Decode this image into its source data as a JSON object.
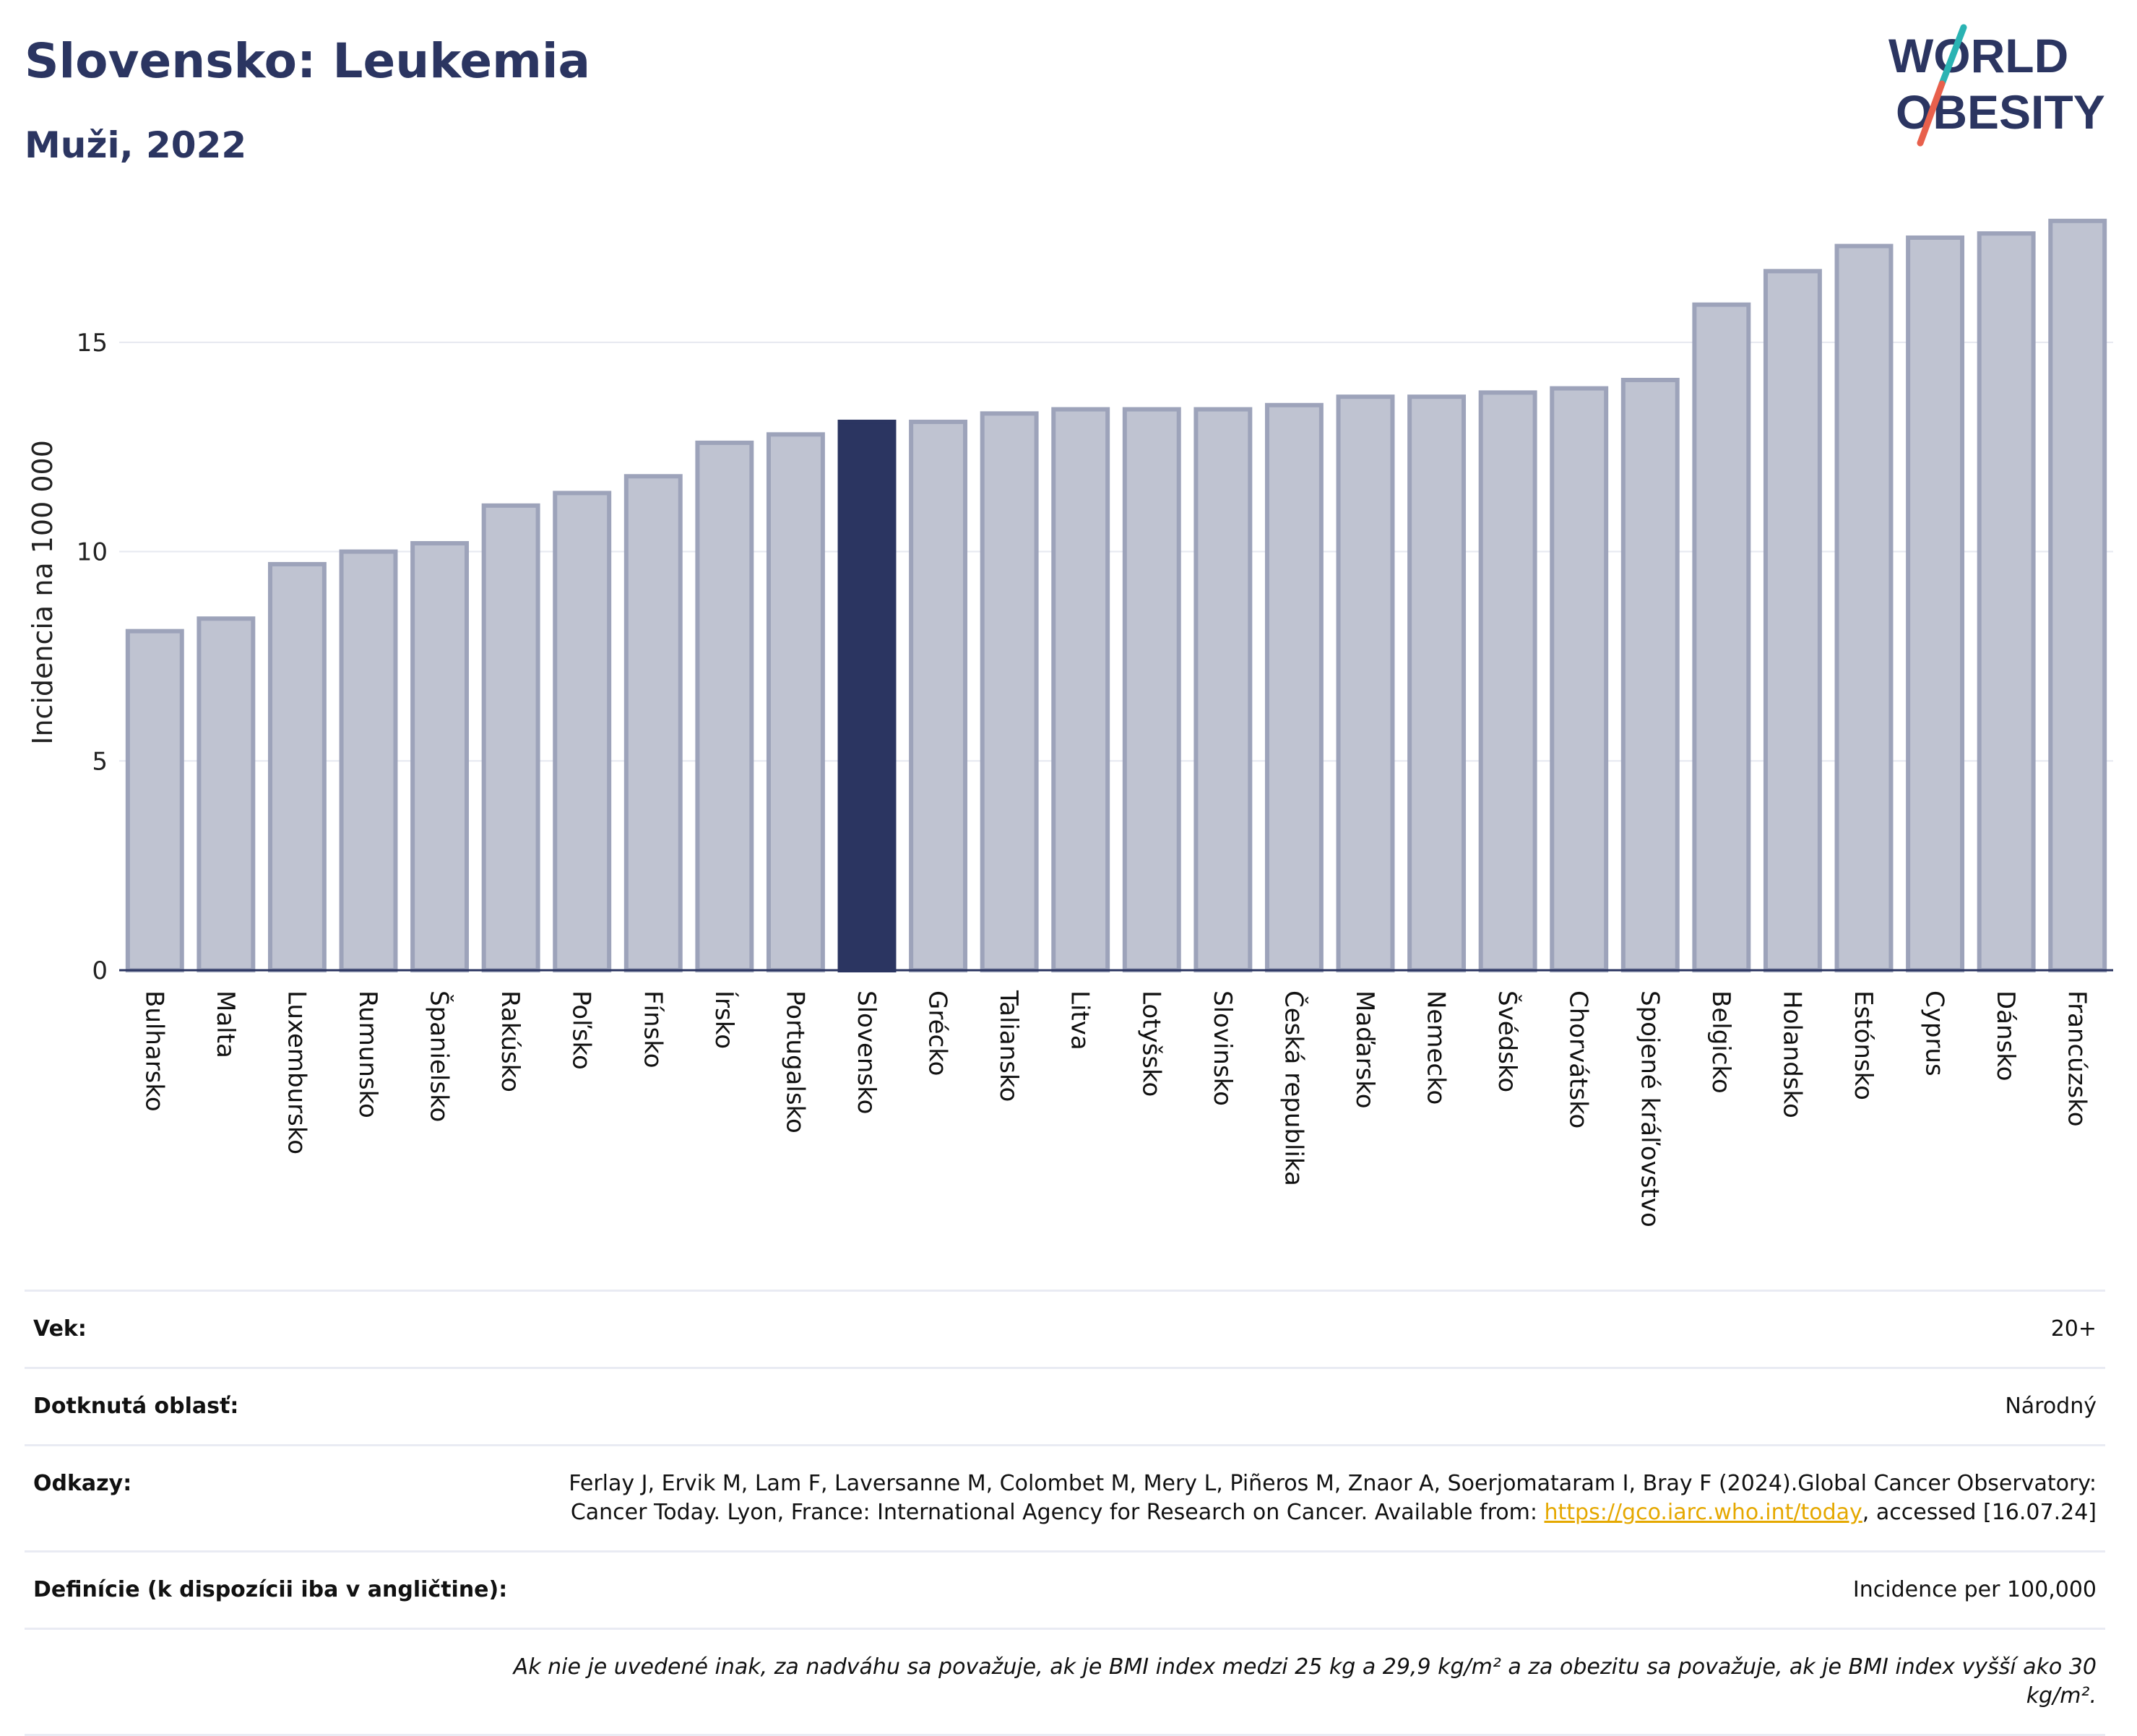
{
  "header": {
    "title": "Slovensko: Leukemia",
    "subtitle": "Muži, 2022"
  },
  "logo": {
    "line1": "WORLD",
    "line2": "OBESITY",
    "color_text": "#2b3561",
    "color_slash_top": "#2ab3b3",
    "color_slash_bottom": "#e8604c"
  },
  "chart_data": {
    "type": "bar",
    "ylabel": "Incidencia na 100 000",
    "ylim": [
      0,
      18
    ],
    "yticks": [
      0,
      5,
      10,
      15
    ],
    "grid": true,
    "highlight": "Slovensko",
    "colors": {
      "bar": "#bfc3d1",
      "bar_stroke": "#9da3ba",
      "highlight": "#2b3561",
      "grid": "#e6e8f0",
      "axis": "#2b3561"
    },
    "categories": [
      "Bulharsko",
      "Malta",
      "Luxembursko",
      "Rumunsko",
      "Španielsko",
      "Rakúsko",
      "Poľsko",
      "Fínsko",
      "Írsko",
      "Portugalsko",
      "Slovensko",
      "Grécko",
      "Taliansko",
      "Litva",
      "Lotyšsko",
      "Slovinsko",
      "Česká republika",
      "Maďarsko",
      "Nemecko",
      "Švédsko",
      "Chorvátsko",
      "Spojené kráľovstvo",
      "Belgicko",
      "Holandsko",
      "Estónsko",
      "Cyprus",
      "Dánsko",
      "Francúzsko"
    ],
    "values": [
      8.1,
      8.4,
      9.7,
      10.0,
      10.2,
      11.1,
      11.4,
      11.8,
      12.6,
      12.8,
      13.1,
      13.1,
      13.3,
      13.4,
      13.4,
      13.4,
      13.5,
      13.7,
      13.7,
      13.8,
      13.9,
      14.1,
      15.9,
      16.7,
      17.3,
      17.5,
      17.6,
      17.9
    ]
  },
  "meta": {
    "age_label": "Vek:",
    "age_value": "20+",
    "area_label": "Dotknutá oblasť:",
    "area_value": "Národný",
    "refs_label": "Odkazy:",
    "refs_text_1": "Ferlay J, Ervik M, Lam F, Laversanne M, Colombet M, Mery L, Piñeros M, Znaor A, Soerjomataram I, Bray F (2024).Global Cancer Observatory: Cancer Today. Lyon, France: International Agency for Research on Cancer. Available from: ",
    "refs_link": "https://gco.iarc.who.int/today",
    "refs_text_2": ", accessed [16.07.24]",
    "defs_label": "Definície (k dispozícii iba v angličtine):",
    "defs_value": "Incidence per 100,000",
    "note": "Ak nie je uvedené inak, za nadváhu sa považuje, ak je BMI index medzi 25 kg a 29,9 kg/m² a za obezitu sa považuje, ak je BMI index vyšší ako 30 kg/m²."
  }
}
